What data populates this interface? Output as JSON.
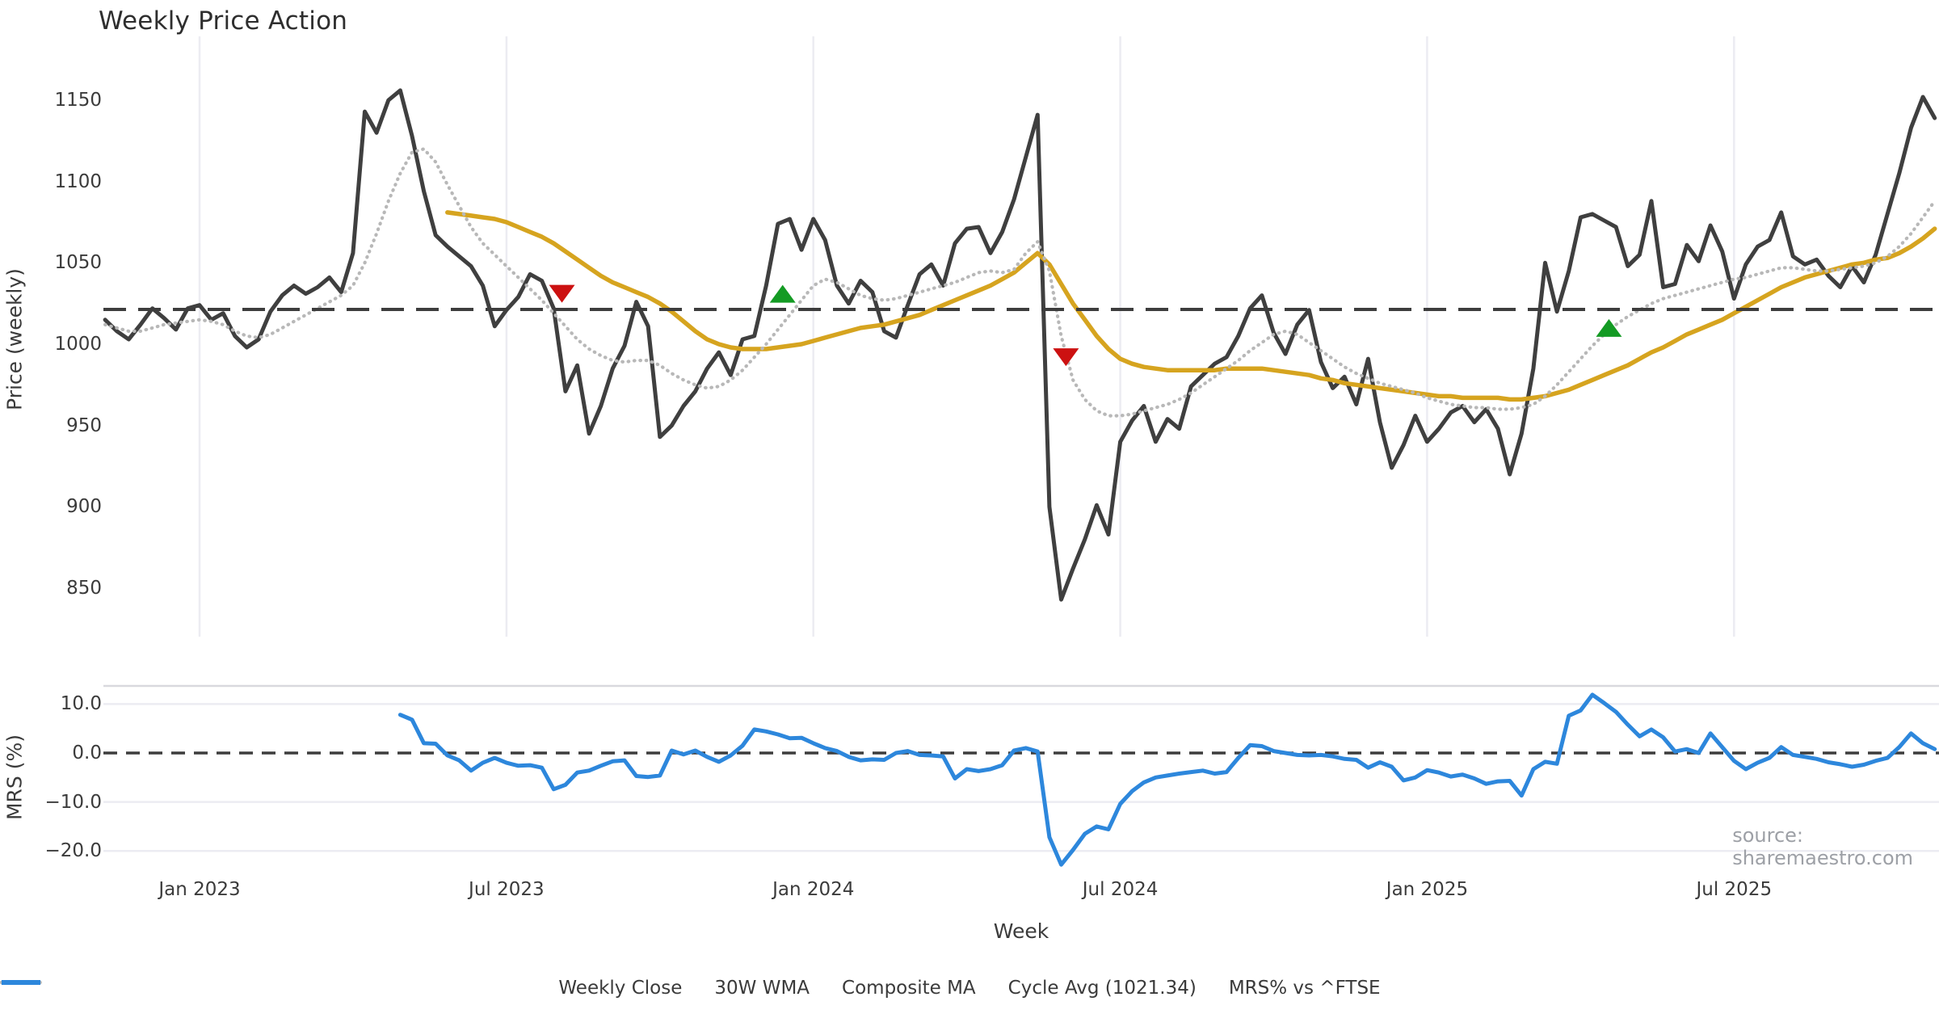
{
  "title": "Weekly Price Action",
  "xlabel": "Week",
  "source_note": "source: sharemaestro.com",
  "colors": {
    "price": "#3f3f3f",
    "wma": "#d6a41f",
    "composite": "#b8b8b8",
    "cycle": "#3d3d3d",
    "mrs": "#2d87dc",
    "buy": "#149b24",
    "sell": "#cc1111",
    "grid": "#ececf2",
    "tick_text": "#3b3b3b"
  },
  "chart_data": [
    {
      "type": "line",
      "panel": "price",
      "ylabel": "Price (weekly)",
      "ylim": [
        822,
        1189
      ],
      "yticks": [
        850,
        900,
        950,
        1000,
        1050,
        1100,
        1150
      ],
      "grid": "vertical-only",
      "cycle_avg": 1021.34,
      "x_axis": {
        "unit": "weekly index, Nov 2022 - Nov 2025",
        "tick_weeks": [
          8,
          34,
          60,
          86,
          112,
          138
        ],
        "tick_labels": [
          "Jan 2023",
          "Jul 2023",
          "Jan 2024",
          "Jul 2024",
          "Jan 2025",
          "Jul 2025"
        ]
      },
      "series": [
        {
          "name": "Weekly Close",
          "style": "solid",
          "color_key": "price",
          "start_week": 0,
          "values": [
            1015,
            1008,
            1003,
            1012,
            1022,
            1016,
            1009,
            1022,
            1024,
            1015,
            1019,
            1005,
            998,
            1003,
            1020,
            1030,
            1036,
            1031,
            1035,
            1041,
            1032,
            1056,
            1143,
            1130,
            1150,
            1156,
            1128,
            1094,
            1067,
            1060,
            1054,
            1048,
            1036,
            1011,
            1021,
            1029,
            1043,
            1039,
            1022,
            971,
            987,
            945,
            962,
            985,
            999,
            1026,
            1011,
            943,
            950,
            962,
            971,
            985,
            995,
            981,
            1003,
            1005,
            1036,
            1074,
            1077,
            1058,
            1077,
            1064,
            1036,
            1025,
            1039,
            1032,
            1008,
            1004,
            1024,
            1043,
            1049,
            1036,
            1062,
            1071,
            1072,
            1056,
            1069,
            1089,
            1115,
            1141,
            900,
            843,
            862,
            880,
            901,
            883,
            940,
            953,
            962,
            940,
            954,
            948,
            974,
            981,
            988,
            992,
            1005,
            1022,
            1030,
            1007,
            994,
            1012,
            1021,
            989,
            973,
            980,
            963,
            991,
            952,
            924,
            938,
            956,
            940,
            948,
            958,
            962,
            952,
            960,
            948,
            920,
            945,
            985,
            1050,
            1020,
            1045,
            1078,
            1080,
            1076,
            1072,
            1048,
            1055,
            1088,
            1035,
            1037,
            1061,
            1051,
            1073,
            1057,
            1028,
            1049,
            1060,
            1064,
            1081,
            1054,
            1049,
            1052,
            1042,
            1035,
            1048,
            1038,
            1055,
            1080,
            1105,
            1133,
            1152,
            1139
          ]
        },
        {
          "name": "30W WMA",
          "style": "solid",
          "color_key": "wma",
          "start_week": 29,
          "values": [
            1081,
            1080,
            1079,
            1078,
            1077,
            1075,
            1072,
            1069,
            1066,
            1062,
            1057,
            1052,
            1047,
            1042,
            1038,
            1035,
            1032,
            1029,
            1025,
            1020,
            1014,
            1008,
            1003,
            1000,
            998,
            997,
            997,
            997,
            998,
            999,
            1000,
            1002,
            1004,
            1006,
            1008,
            1010,
            1011,
            1012,
            1014,
            1016,
            1018,
            1021,
            1024,
            1027,
            1030,
            1033,
            1036,
            1040,
            1044,
            1050,
            1056,
            1049,
            1037,
            1025,
            1015,
            1005,
            997,
            991,
            988,
            986,
            985,
            984,
            984,
            984,
            984,
            984,
            985,
            985,
            985,
            985,
            984,
            983,
            982,
            981,
            979,
            978,
            976,
            975,
            974,
            973,
            972,
            971,
            970,
            969,
            968,
            968,
            967,
            967,
            967,
            967,
            966,
            966,
            967,
            968,
            970,
            972,
            975,
            978,
            981,
            984,
            987,
            991,
            995,
            998,
            1002,
            1006,
            1009,
            1012,
            1015,
            1019,
            1023,
            1027,
            1031,
            1035,
            1038,
            1041,
            1043,
            1045,
            1047,
            1049,
            1050,
            1052,
            1053,
            1056,
            1060,
            1065,
            1071
          ]
        },
        {
          "name": "Composite MA",
          "style": "dotted",
          "color_key": "composite",
          "start_week": 0,
          "values": [
            1012,
            1010,
            1008,
            1008,
            1010,
            1012,
            1013,
            1014,
            1015,
            1014,
            1012,
            1008,
            1005,
            1004,
            1006,
            1010,
            1014,
            1018,
            1022,
            1026,
            1030,
            1036,
            1050,
            1068,
            1088,
            1105,
            1118,
            1120,
            1112,
            1098,
            1085,
            1072,
            1062,
            1055,
            1048,
            1041,
            1034,
            1027,
            1019,
            1011,
            1003,
            997,
            993,
            990,
            989,
            990,
            990,
            987,
            982,
            978,
            975,
            973,
            974,
            978,
            984,
            992,
            1000,
            1009,
            1018,
            1027,
            1036,
            1040,
            1038,
            1034,
            1030,
            1028,
            1027,
            1028,
            1030,
            1032,
            1034,
            1036,
            1038,
            1041,
            1044,
            1045,
            1044,
            1046,
            1056,
            1063,
            1045,
            1005,
            978,
            966,
            959,
            956,
            956,
            957,
            959,
            961,
            963,
            966,
            970,
            975,
            980,
            985,
            990,
            996,
            1001,
            1006,
            1008,
            1006,
            1001,
            996,
            991,
            986,
            982,
            979,
            976,
            974,
            972,
            970,
            967,
            965,
            963,
            962,
            961,
            961,
            960,
            960,
            961,
            963,
            968,
            975,
            983,
            991,
            999,
            1006,
            1012,
            1017,
            1021,
            1025,
            1028,
            1030,
            1032,
            1034,
            1036,
            1038,
            1040,
            1041,
            1043,
            1045,
            1047,
            1047,
            1046,
            1045,
            1045,
            1046,
            1047,
            1048,
            1050,
            1054,
            1060,
            1068,
            1078,
            1088
          ]
        }
      ],
      "markers": {
        "buy": [
          {
            "week": 57.4,
            "value": 1031
          },
          {
            "week": 127.4,
            "value": 1010
          }
        ],
        "sell": [
          {
            "week": 38.7,
            "value": 1031
          },
          {
            "week": 81.4,
            "value": 992
          }
        ]
      }
    },
    {
      "type": "line",
      "panel": "mrs",
      "ylabel": "MRS (%)",
      "ylim": [
        -24,
        14
      ],
      "yticks": [
        10,
        0,
        -10,
        -20
      ],
      "ytick_labels": [
        "10.0",
        "0.0",
        "−10.0",
        "−20.0"
      ],
      "zero_line": 0,
      "grid": "horizontal-only",
      "series": [
        {
          "name": "MRS% vs ^FTSE",
          "style": "solid",
          "color_key": "mrs",
          "start_week": 25,
          "values": [
            7.8,
            6.8,
            2.0,
            1.9,
            -0.5,
            -1.5,
            -3.6,
            -2.0,
            -1.0,
            -2.0,
            -2.6,
            -2.5,
            -3.0,
            -7.4,
            -6.5,
            -4.0,
            -3.6,
            -2.6,
            -1.7,
            -1.5,
            -4.7,
            -4.9,
            -4.6,
            0.5,
            -0.3,
            0.5,
            -0.8,
            -1.8,
            -0.5,
            1.5,
            4.8,
            4.4,
            3.8,
            3.0,
            3.1,
            2.0,
            1.0,
            0.4,
            -0.8,
            -1.5,
            -1.3,
            -1.4,
            0.0,
            0.4,
            -0.4,
            -0.5,
            -0.7,
            -5.2,
            -3.3,
            -3.7,
            -3.3,
            -2.5,
            0.5,
            1.0,
            0.3,
            -17.2,
            -22.8,
            -19.8,
            -16.5,
            -15.0,
            -15.6,
            -10.4,
            -7.8,
            -6.0,
            -5.0,
            -4.6,
            -4.2,
            -3.9,
            -3.6,
            -4.2,
            -3.9,
            -1.0,
            1.6,
            1.4,
            0.4,
            0.0,
            -0.4,
            -0.5,
            -0.4,
            -0.7,
            -1.2,
            -1.4,
            -3.0,
            -1.9,
            -2.8,
            -5.6,
            -5.0,
            -3.5,
            -4.0,
            -4.8,
            -4.4,
            -5.2,
            -6.3,
            -5.8,
            -5.7,
            -8.7,
            -3.3,
            -1.8,
            -2.2,
            7.6,
            8.7,
            11.9,
            10.2,
            8.4,
            5.8,
            3.4,
            4.8,
            3.2,
            0.3,
            0.8,
            0.0,
            4.0,
            1.2,
            -1.6,
            -3.3,
            -2.0,
            -1.0,
            1.2,
            -0.4,
            -0.8,
            -1.2,
            -1.9,
            -2.3,
            -2.8,
            -2.4,
            -1.6,
            -1.0,
            1.2,
            4.0,
            2.0,
            0.8
          ]
        }
      ]
    }
  ],
  "legend": {
    "items": [
      {
        "label": "Weekly Close",
        "swatch": "solid",
        "color_key": "price"
      },
      {
        "label": "30W WMA",
        "swatch": "solid",
        "color_key": "wma"
      },
      {
        "label": "Composite MA",
        "swatch": "dotted",
        "color_key": "composite"
      },
      {
        "label": "Cycle Avg (1021.34)",
        "swatch": "dashed",
        "color_key": "cycle"
      },
      {
        "label": "MRS% vs ^FTSE",
        "swatch": "solid",
        "color_key": "mrs"
      }
    ]
  }
}
